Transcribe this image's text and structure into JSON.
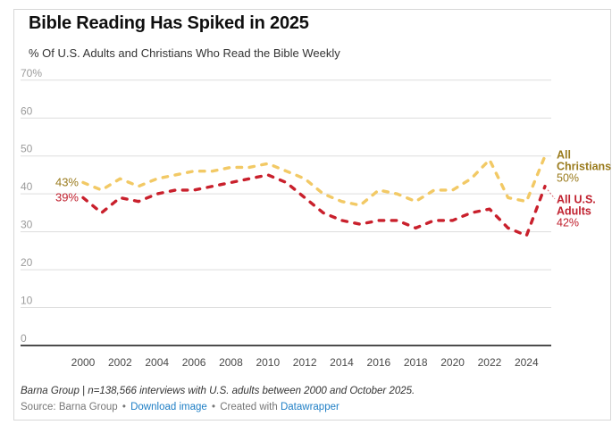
{
  "chart_data": {
    "type": "line",
    "title": "Bible Reading Has Spiked in 2025",
    "subtitle": "% Of U.S. Adults and Christians Who Read the Bible Weekly",
    "x": [
      2000,
      2001,
      2002,
      2003,
      2004,
      2005,
      2006,
      2007,
      2008,
      2009,
      2010,
      2011,
      2012,
      2013,
      2014,
      2015,
      2016,
      2017,
      2018,
      2019,
      2020,
      2021,
      2022,
      2023,
      2024,
      2025
    ],
    "series": [
      {
        "name": "All Christians",
        "end_name_lines": [
          "All",
          "Christians"
        ],
        "start_label": "43%",
        "end_label": "50%",
        "line_color": "#f2c965",
        "label_color": "#9a7b1d",
        "values": [
          43,
          41,
          44,
          42,
          44,
          45,
          46,
          46,
          47,
          47,
          48,
          46,
          44,
          40,
          38,
          37,
          41,
          40,
          38,
          41,
          41,
          44,
          49,
          39,
          38,
          50
        ]
      },
      {
        "name": "All U.S. Adults",
        "end_name_lines": [
          "All U.S.",
          "Adults"
        ],
        "start_label": "39%",
        "end_label": "42%",
        "line_color": "#c9202c",
        "label_color": "#c0202e",
        "values": [
          39,
          35,
          39,
          38,
          40,
          41,
          41,
          42,
          43,
          44,
          45,
          43,
          39,
          35,
          33,
          32,
          33,
          33,
          31,
          33,
          33,
          35,
          36,
          31,
          29,
          42
        ]
      }
    ],
    "ylim": [
      0,
      70
    ],
    "yticks": [
      0,
      10,
      20,
      30,
      40,
      50,
      60,
      70
    ],
    "ytick_top_label": "70%",
    "xticks": [
      2000,
      2002,
      2004,
      2006,
      2008,
      2010,
      2012,
      2014,
      2016,
      2018,
      2020,
      2022,
      2024
    ],
    "grid": "horizontal",
    "legend_position": "right-edge-labels",
    "axis_label_color": "#9b9b9b",
    "xtick_label_color": "#4a4a4a"
  },
  "footer": {
    "note": "Barna Group | n=138,566 interviews with U.S. adults between 2000 and October 2025.",
    "source_label": "Source: Barna Group",
    "separator": "•",
    "download_link": "Download image",
    "created_with": "Created with",
    "datawrapper_link": "Datawrapper",
    "link_color": "#1e7ec5"
  }
}
